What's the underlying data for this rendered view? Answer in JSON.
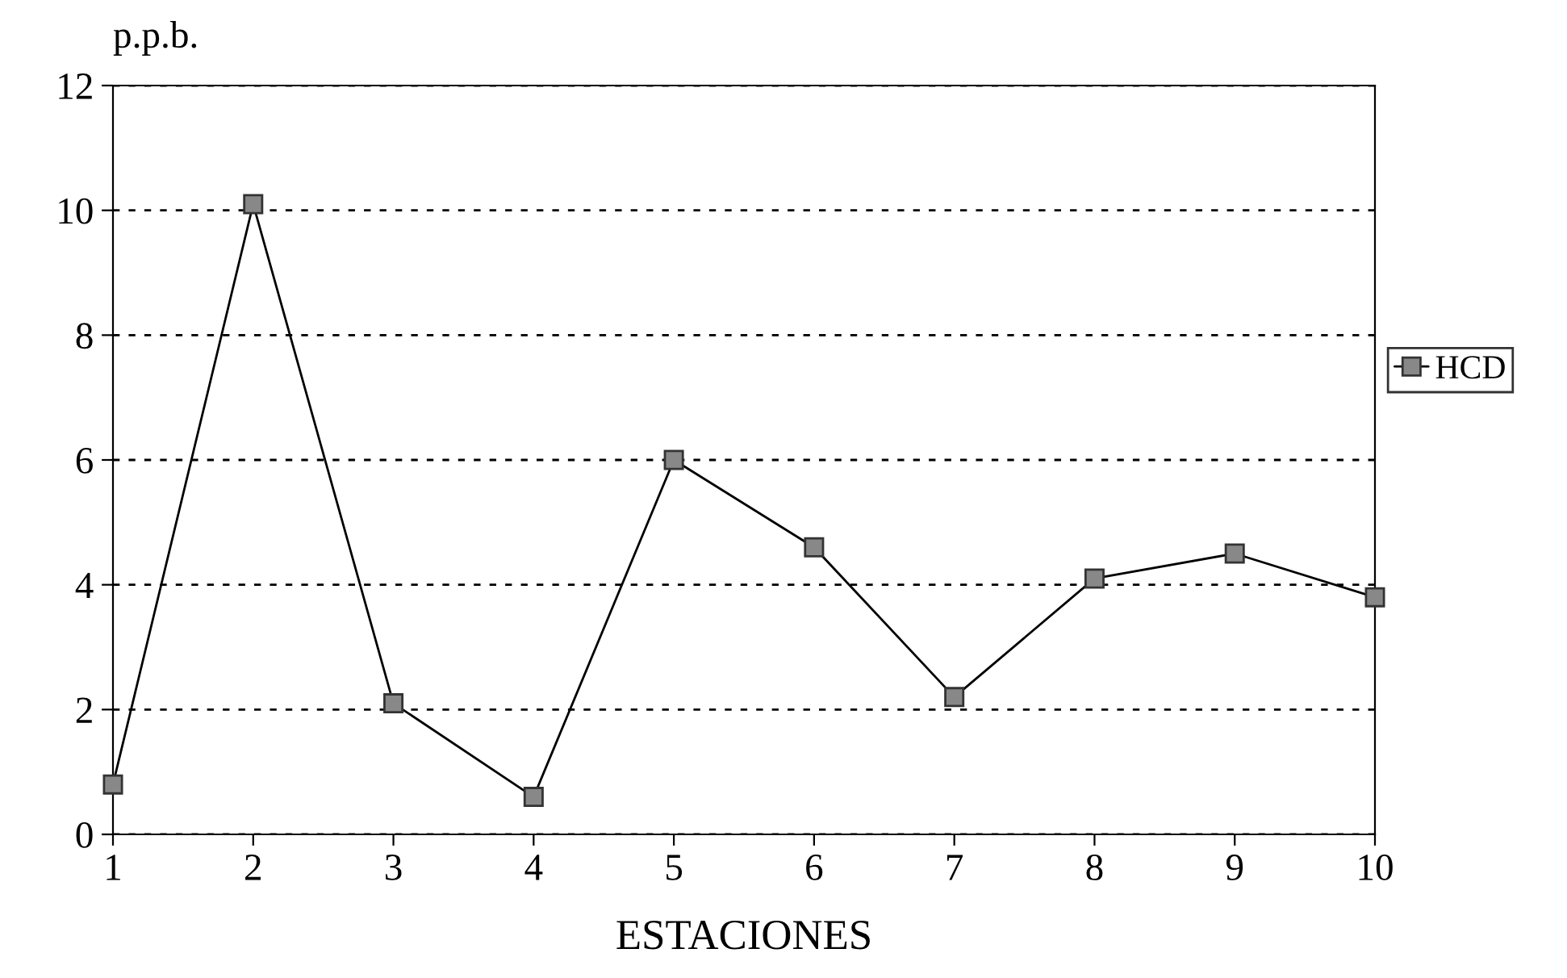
{
  "chart_data": {
    "type": "line",
    "xlabel": "ESTACIONES",
    "ylabel": "p.p.b.",
    "x": [
      1,
      2,
      3,
      4,
      5,
      6,
      7,
      8,
      9,
      10
    ],
    "series": [
      {
        "name": "HCD",
        "color": "#000000",
        "values": [
          0.8,
          10.1,
          2.1,
          0.6,
          6.0,
          4.6,
          2.2,
          4.1,
          4.5,
          3.8
        ]
      }
    ],
    "xlim": [
      1,
      10
    ],
    "xticks": [
      1,
      2,
      3,
      4,
      5,
      6,
      7,
      8,
      9,
      10
    ],
    "ylim": [
      0,
      12
    ],
    "yticks": [
      0,
      2,
      4,
      6,
      8,
      10,
      12
    ],
    "grid": "y",
    "legend": "right",
    "marker": "square",
    "line_style": "solid"
  }
}
